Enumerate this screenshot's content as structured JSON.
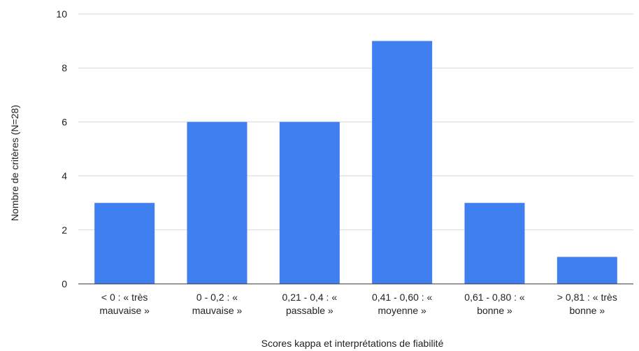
{
  "chart_data": {
    "type": "bar",
    "title": "",
    "xlabel": "Scores kappa et interprétations de fiabilité",
    "ylabel": "Nombre de critères (N=28)",
    "ylim": [
      0,
      10
    ],
    "yticks": [
      0,
      2,
      4,
      6,
      8,
      10
    ],
    "grid": true,
    "bar_color": "#3f7fef",
    "categories": [
      [
        "< 0 : « très",
        "mauvaise »"
      ],
      [
        "0 - 0,2 : «",
        "mauvaise »"
      ],
      [
        "0,21 - 0,4 : «",
        "passable »"
      ],
      [
        "0,41 - 0,60 : «",
        "moyenne »"
      ],
      [
        "0,61 - 0,80 : «",
        "bonne »"
      ],
      [
        "> 0,81 : « très",
        "bonne »"
      ]
    ],
    "values": [
      3,
      6,
      6,
      9,
      3,
      1
    ]
  }
}
